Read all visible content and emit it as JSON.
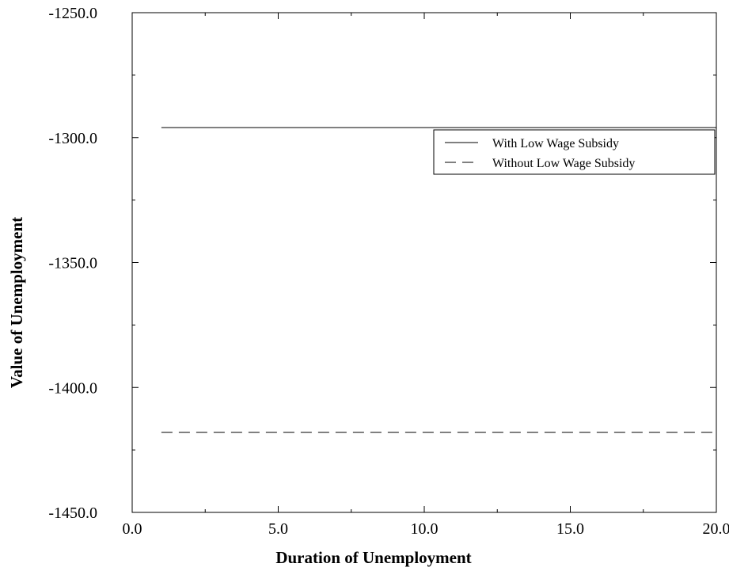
{
  "chart_data": {
    "type": "line",
    "xlabel": "Duration of Unemployment",
    "ylabel": "Value of Unemployment",
    "xlim": [
      0,
      20
    ],
    "ylim": [
      -1450,
      -1250
    ],
    "x_ticks": [
      0,
      5,
      10,
      15,
      20
    ],
    "x_tick_labels": [
      "0.0",
      "5.0",
      "10.0",
      "15.0",
      "20.0"
    ],
    "y_ticks": [
      -1250,
      -1300,
      -1350,
      -1400,
      -1450
    ],
    "y_tick_labels": [
      "-1250.0",
      "-1300.0",
      "-1350.0",
      "-1400.0",
      "-1450.0"
    ],
    "grid": false,
    "legend_position": "top-right",
    "series": [
      {
        "name": "With Low Wage Subsidy",
        "style": "solid",
        "color": "#000000",
        "x": [
          1,
          20
        ],
        "y": [
          -1296,
          -1296
        ]
      },
      {
        "name": "Without Low Wage Subsidy",
        "style": "dashed",
        "color": "#000000",
        "x": [
          1,
          20
        ],
        "y": [
          -1418,
          -1418
        ]
      }
    ]
  }
}
